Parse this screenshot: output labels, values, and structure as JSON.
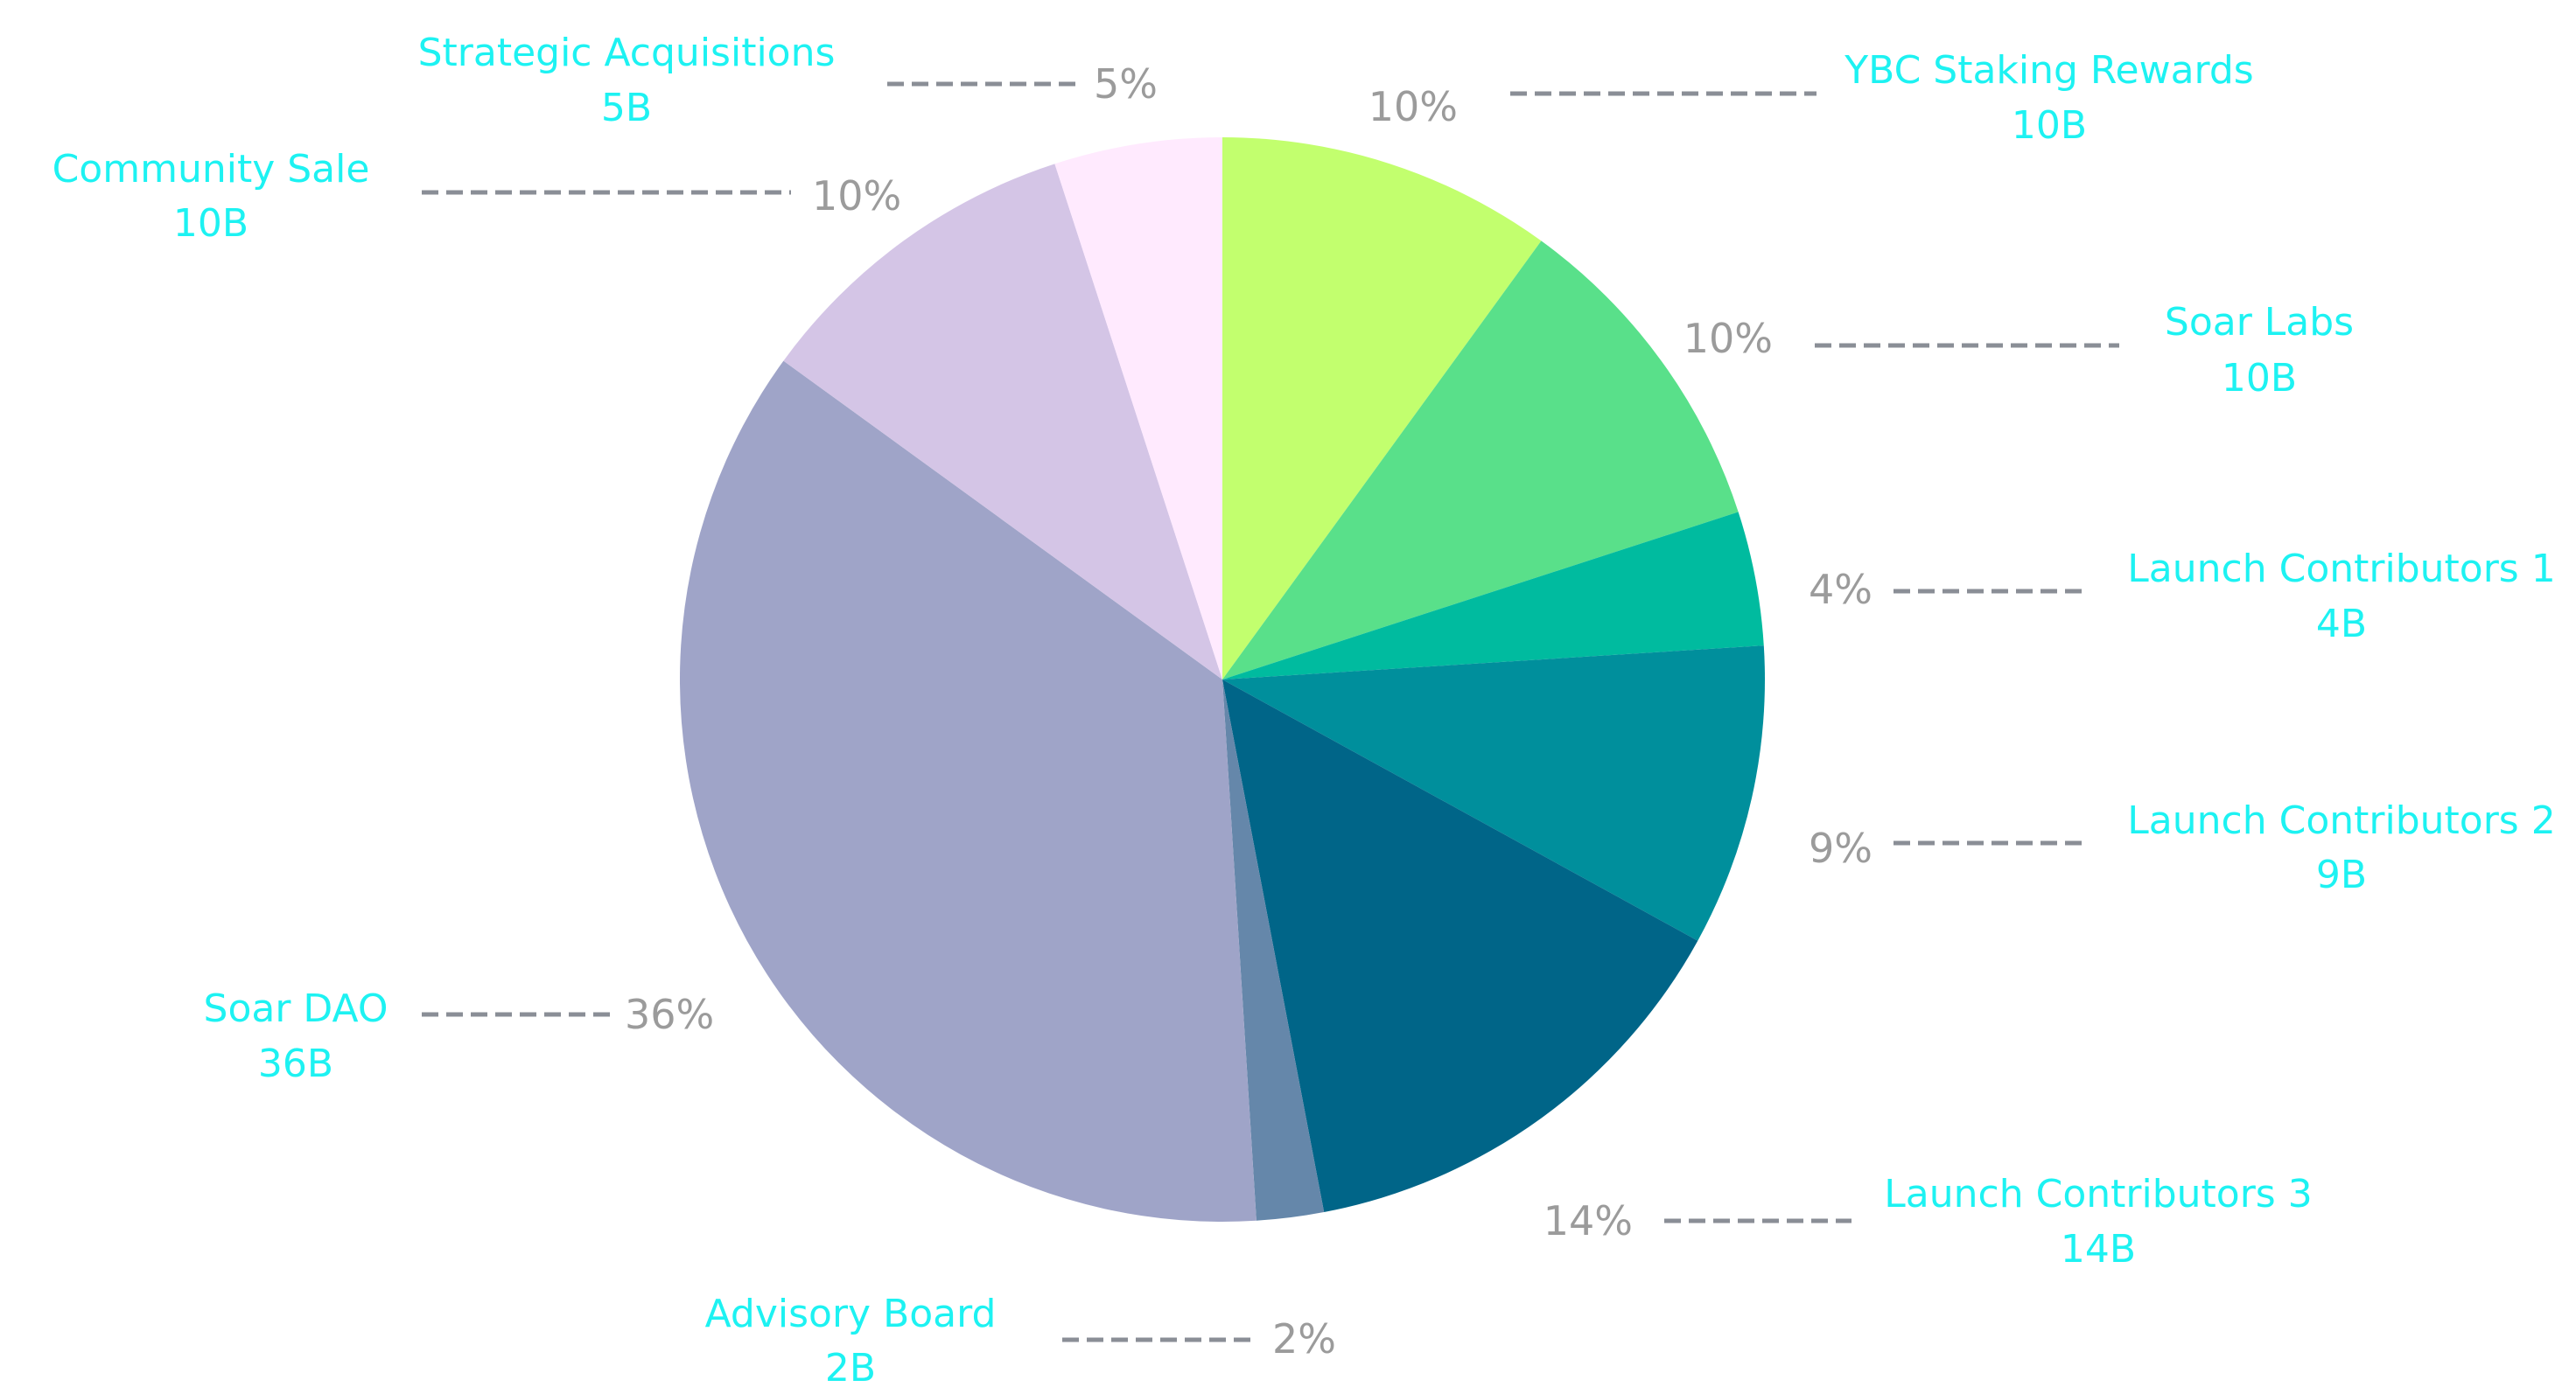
{
  "chart_data": {
    "type": "pie",
    "title": "",
    "start_angle_deg": 0,
    "direction": "clockwise",
    "legend": "none",
    "slices": [
      {
        "label": "YBC Staking Rewards",
        "amount": "10B",
        "percent_label": "10%",
        "value": 10,
        "color": "#c2ff6e"
      },
      {
        "label": "Soar Labs",
        "amount": "10B",
        "percent_label": "10%",
        "value": 10,
        "color": "#59e08a"
      },
      {
        "label": "Launch Contributors 1",
        "amount": "4B",
        "percent_label": "4%",
        "value": 4,
        "color": "#00bb9f"
      },
      {
        "label": "Launch Contributors 2",
        "amount": "9B",
        "percent_label": "9%",
        "value": 9,
        "color": "#008f9c"
      },
      {
        "label": "Launch Contributors 3",
        "amount": "14B",
        "percent_label": "14%",
        "value": 14,
        "color": "#006588"
      },
      {
        "label": "Advisory Board",
        "amount": "2B",
        "percent_label": "2%",
        "value": 2,
        "color": "#6587aa"
      },
      {
        "label": "Soar DAO",
        "amount": "36B",
        "percent_label": "36%",
        "value": 36,
        "color": "#9fa4c8"
      },
      {
        "label": "Community Sale",
        "amount": "10B",
        "percent_label": "10%",
        "value": 10,
        "color": "#d4c5e6"
      },
      {
        "label": "Strategic Acquisitions",
        "amount": "5B",
        "percent_label": "5%",
        "value": 5,
        "color": "#ffeafe"
      }
    ]
  }
}
